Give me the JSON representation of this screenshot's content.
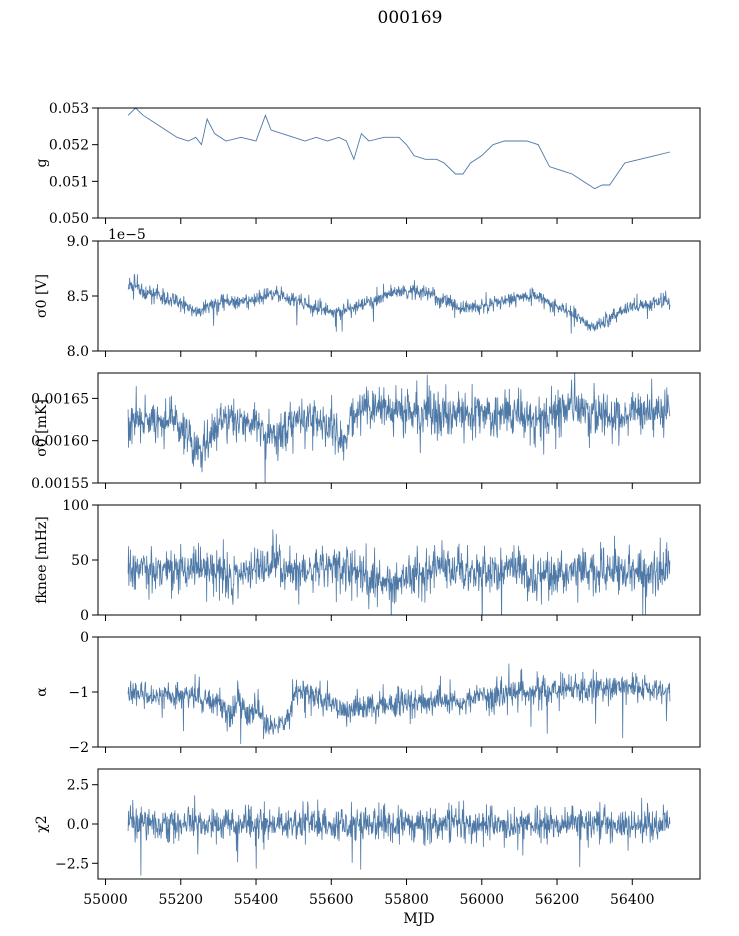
{
  "title": "000169",
  "xlabel": "MJD",
  "colors": {
    "series": "#4e79a7",
    "axes": "#000000"
  },
  "x_ticks": [
    "55000",
    "55200",
    "55400",
    "55600",
    "55800",
    "56000",
    "56200",
    "56400"
  ],
  "chart_data": [
    {
      "type": "line",
      "ylabel": "g",
      "ylim": [
        0.05,
        0.053
      ],
      "yticks": [
        "0.050",
        "0.051",
        "0.052",
        "0.053"
      ],
      "offset_text": "",
      "xlim": [
        54980,
        56580
      ],
      "x_ticks_labeled": false,
      "series": [
        {
          "x": [
            55060,
            55080,
            55100,
            55130,
            55160,
            55190,
            55220,
            55240,
            55255,
            55270,
            55290,
            55320,
            55360,
            55400,
            55425,
            55440,
            55470,
            55500,
            55530,
            55560,
            55590,
            55620,
            55640,
            55660,
            55680,
            55700,
            55740,
            55780,
            55800,
            55820,
            55850,
            55880,
            55900,
            55930,
            55950,
            55970,
            56000,
            56030,
            56060,
            56090,
            56120,
            56150,
            56180,
            56210,
            56240,
            56270,
            56300,
            56320,
            56340,
            56380,
            56420,
            56460,
            56500
          ],
          "y": [
            0.0528,
            0.053,
            0.0528,
            0.0526,
            0.0524,
            0.0522,
            0.0521,
            0.0522,
            0.052,
            0.0527,
            0.0523,
            0.0521,
            0.0522,
            0.0521,
            0.0528,
            0.0524,
            0.0523,
            0.0522,
            0.0521,
            0.0522,
            0.0521,
            0.0522,
            0.0521,
            0.0516,
            0.0523,
            0.0521,
            0.0522,
            0.0522,
            0.052,
            0.0517,
            0.0516,
            0.0516,
            0.0515,
            0.0512,
            0.0512,
            0.0515,
            0.0517,
            0.052,
            0.0521,
            0.0521,
            0.0521,
            0.052,
            0.0514,
            0.0513,
            0.0512,
            0.051,
            0.0508,
            0.0509,
            0.0509,
            0.0515,
            0.0516,
            0.0517,
            0.0518
          ]
        }
      ]
    },
    {
      "type": "line",
      "ylabel": "σ0 [V]",
      "ylim": [
        8.0,
        9.0
      ],
      "yticks": [
        "8.0",
        "8.5",
        "9.0"
      ],
      "offset_text": "1e−5",
      "xlim": [
        54980,
        56580
      ],
      "x_ticks_labeled": false,
      "noise": 0.05,
      "series": [
        {
          "x": [
            55060,
            55100,
            55150,
            55200,
            55240,
            55260,
            55300,
            55350,
            55400,
            55450,
            55500,
            55550,
            55600,
            55650,
            55700,
            55750,
            55800,
            55850,
            55900,
            55950,
            56000,
            56050,
            56100,
            56150,
            56200,
            56250,
            56300,
            56350,
            56400,
            56450,
            56500
          ],
          "y": [
            8.6,
            8.55,
            8.5,
            8.45,
            8.35,
            8.38,
            8.45,
            8.45,
            8.48,
            8.52,
            8.48,
            8.4,
            8.35,
            8.38,
            8.45,
            8.52,
            8.55,
            8.52,
            8.45,
            8.38,
            8.4,
            8.45,
            8.5,
            8.5,
            8.4,
            8.32,
            8.22,
            8.32,
            8.4,
            8.43,
            8.45
          ]
        }
      ]
    },
    {
      "type": "line",
      "ylabel": "σ0 [mK]",
      "ylim": [
        0.00155,
        0.00168
      ],
      "yticks": [
        "0.00155",
        "0.00160",
        "0.00165"
      ],
      "offset_text": "",
      "xlim": [
        54980,
        56580
      ],
      "x_ticks_labeled": false,
      "noise": 1.8e-05,
      "series": [
        {
          "x": [
            55060,
            55100,
            55150,
            55200,
            55230,
            55260,
            55300,
            55350,
            55400,
            55430,
            55470,
            55500,
            55550,
            55600,
            55630,
            55660,
            55700,
            55750,
            55800,
            55850,
            55900,
            55950,
            56000,
            56050,
            56100,
            56150,
            56200,
            56250,
            56300,
            56350,
            56400,
            56450,
            56500
          ],
          "y": [
            0.001625,
            0.001622,
            0.001625,
            0.00162,
            0.001595,
            0.001585,
            0.001618,
            0.001625,
            0.001628,
            0.001602,
            0.00161,
            0.001622,
            0.001625,
            0.00162,
            0.001595,
            0.001635,
            0.001638,
            0.001635,
            0.001632,
            0.00163,
            0.00163,
            0.001632,
            0.001635,
            0.001632,
            0.00163,
            0.001628,
            0.001635,
            0.00164,
            0.00163,
            0.001628,
            0.001635,
            0.001633,
            0.001632
          ]
        }
      ]
    },
    {
      "type": "line",
      "ylabel": "fknee [mHz]",
      "ylim": [
        0,
        100
      ],
      "yticks": [
        "0",
        "50",
        "100"
      ],
      "offset_text": "",
      "xlim": [
        54980,
        56580
      ],
      "x_ticks_labeled": false,
      "noise": 14,
      "series": [
        {
          "x": [
            55060,
            55100,
            55150,
            55200,
            55250,
            55300,
            55330,
            55350,
            55400,
            55450,
            55500,
            55550,
            55600,
            55650,
            55700,
            55750,
            55800,
            55850,
            55900,
            55950,
            56000,
            56050,
            56100,
            56150,
            56200,
            56250,
            56300,
            56350,
            56400,
            56450,
            56500
          ],
          "y": [
            40,
            42,
            40,
            42,
            40,
            45,
            30,
            38,
            42,
            48,
            38,
            40,
            45,
            42,
            35,
            30,
            35,
            40,
            45,
            40,
            38,
            40,
            40,
            38,
            38,
            40,
            38,
            38,
            40,
            40,
            38
          ]
        }
      ]
    },
    {
      "type": "line",
      "ylabel": "α",
      "ylim": [
        -2,
        0
      ],
      "yticks": [
        "−2",
        "−1",
        "0"
      ],
      "offset_text": "",
      "xlim": [
        54980,
        56580
      ],
      "x_ticks_labeled": false,
      "noise": 0.18,
      "series": [
        {
          "x": [
            55060,
            55100,
            55150,
            55200,
            55250,
            55300,
            55330,
            55350,
            55380,
            55400,
            55430,
            55450,
            55480,
            55500,
            55520,
            55550,
            55600,
            55650,
            55700,
            55750,
            55800,
            55850,
            55900,
            55950,
            56000,
            56050,
            56100,
            56150,
            56200,
            56250,
            56300,
            56350,
            56400,
            56450,
            56500
          ],
          "y": [
            -1.0,
            -1.05,
            -1.1,
            -1.05,
            -1.1,
            -1.15,
            -1.5,
            -1.1,
            -1.45,
            -1.3,
            -1.7,
            -1.6,
            -1.55,
            -1.1,
            -0.95,
            -1.1,
            -1.2,
            -1.3,
            -1.3,
            -1.25,
            -1.2,
            -1.15,
            -1.15,
            -1.15,
            -1.1,
            -1.05,
            -1.0,
            -1.0,
            -0.95,
            -0.95,
            -0.9,
            -0.9,
            -0.9,
            -0.95,
            -0.95
          ]
        }
      ]
    },
    {
      "type": "line",
      "ylabel": "χ2",
      "ylim": [
        -3.5,
        3.5
      ],
      "yticks": [
        "−2.5",
        "0.0",
        "2.5"
      ],
      "offset_text": "",
      "xlim": [
        54980,
        56580
      ],
      "x_ticks_labeled": true,
      "noise": 0.75,
      "series": [
        {
          "x": [
            55060,
            56500
          ],
          "y": [
            0.0,
            0.0
          ]
        }
      ]
    }
  ]
}
